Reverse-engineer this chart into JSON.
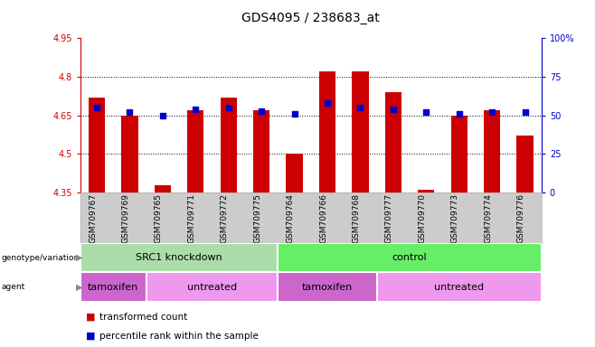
{
  "title": "GDS4095 / 238683_at",
  "samples": [
    "GSM709767",
    "GSM709769",
    "GSM709765",
    "GSM709771",
    "GSM709772",
    "GSM709775",
    "GSM709764",
    "GSM709766",
    "GSM709768",
    "GSM709777",
    "GSM709770",
    "GSM709773",
    "GSM709774",
    "GSM709776"
  ],
  "bar_values": [
    4.72,
    4.65,
    4.38,
    4.67,
    4.72,
    4.67,
    4.5,
    4.82,
    4.82,
    4.74,
    4.36,
    4.65,
    4.67,
    4.57
  ],
  "dot_values": [
    55,
    52,
    50,
    54,
    55,
    53,
    51,
    58,
    55,
    54,
    52,
    51,
    52,
    52
  ],
  "y_min": 4.35,
  "y_max": 4.95,
  "y_ticks": [
    4.35,
    4.5,
    4.65,
    4.8,
    4.95
  ],
  "y2_ticks": [
    0,
    25,
    50,
    75,
    100
  ],
  "y2_tick_labels": [
    "0",
    "25",
    "50",
    "75",
    "100%"
  ],
  "bar_color": "#cc0000",
  "dot_color": "#0000cc",
  "genotype_groups": [
    {
      "label": "SRC1 knockdown",
      "start": 0,
      "end": 6,
      "color": "#aaddaa"
    },
    {
      "label": "control",
      "start": 6,
      "end": 14,
      "color": "#66ee66"
    }
  ],
  "agent_groups": [
    {
      "label": "tamoxifen",
      "start": 0,
      "end": 2,
      "color": "#cc66cc"
    },
    {
      "label": "untreated",
      "start": 2,
      "end": 6,
      "color": "#ee99ee"
    },
    {
      "label": "tamoxifen",
      "start": 6,
      "end": 9,
      "color": "#cc66cc"
    },
    {
      "label": "untreated",
      "start": 9,
      "end": 14,
      "color": "#ee99ee"
    }
  ],
  "legend_items": [
    {
      "label": "transformed count",
      "color": "#cc0000"
    },
    {
      "label": "percentile rank within the sample",
      "color": "#0000cc"
    }
  ],
  "left_axis_color": "#cc0000",
  "right_axis_color": "#0000cc",
  "title_fontsize": 10,
  "tick_fontsize": 7,
  "sample_fontsize": 6.5,
  "label_fontsize": 8,
  "legend_fontsize": 7.5,
  "grid_ticks": [
    4.5,
    4.65,
    4.8
  ]
}
